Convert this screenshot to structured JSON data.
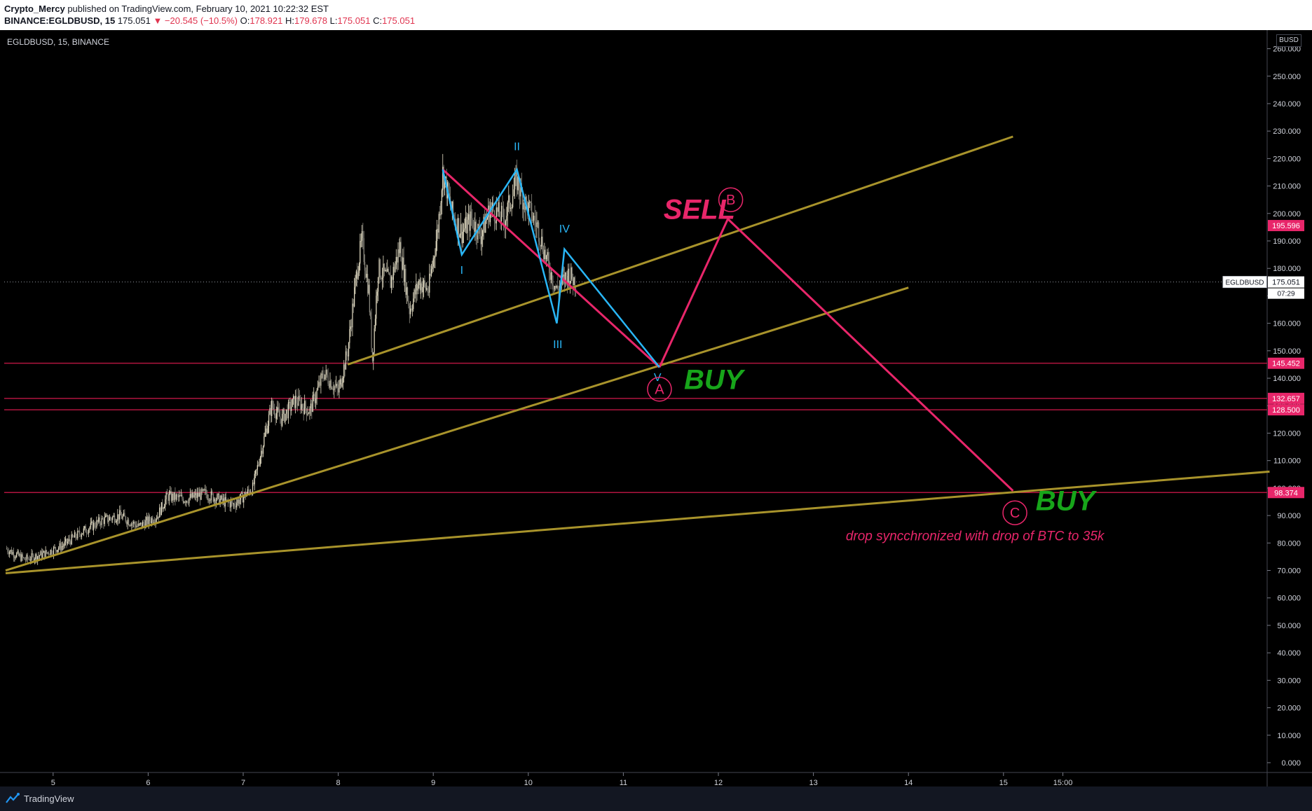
{
  "header": {
    "author": "Crypto_Mercy",
    "published": " published on TradingView.com, February 10, 2021 10:22:32 EST",
    "symbol_full": "BINANCE:EGLDBUSD, 15",
    "last": "175.051",
    "change": "▼ −20.545 (−10.5%)",
    "o_label": "O:",
    "o": "178.921",
    "h_label": "H:",
    "h": "179.678",
    "l_label": "L:",
    "l": "175.051",
    "c_label": "C:",
    "c": "175.051"
  },
  "chart_label": "EGLDBUSD, 15, BINANCE",
  "axis_unit": "BUSD",
  "footer": {
    "brand": "TradingView"
  },
  "colors": {
    "background": "#000000",
    "trendline": "#a8932b",
    "projection": "#e8266a",
    "wave": "#29b6f6",
    "buy": "#17a51a",
    "hline": "#b1153f",
    "price_tag": "#e8266a"
  },
  "chart_data": {
    "type": "candlestick",
    "title": "EGLDBUSD, 15, BINANCE",
    "x_ticks": [
      {
        "label": "5",
        "x": 5
      },
      {
        "label": "6",
        "x": 6
      },
      {
        "label": "7",
        "x": 7
      },
      {
        "label": "8",
        "x": 8
      },
      {
        "label": "9",
        "x": 9
      },
      {
        "label": "10",
        "x": 10
      },
      {
        "label": "11",
        "x": 11
      },
      {
        "label": "12",
        "x": 12
      },
      {
        "label": "13",
        "x": 13
      },
      {
        "label": "14",
        "x": 14
      },
      {
        "label": "15",
        "x": 15
      },
      {
        "label": "15:00",
        "x": 15.625
      }
    ],
    "x_range": [
      4.5,
      17.8
    ],
    "y_range": [
      0,
      265
    ],
    "y_ticks": [
      "0.000",
      "10.000",
      "20.000",
      "30.000",
      "40.000",
      "50.000",
      "60.000",
      "70.000",
      "80.000",
      "90.000",
      "100.000",
      "110.000",
      "120.000",
      "130.000",
      "140.000",
      "150.000",
      "160.000",
      "170.000",
      "180.000",
      "190.000",
      "200.000",
      "210.000",
      "220.000",
      "230.000",
      "240.000",
      "250.000",
      "260.000"
    ],
    "y_tick_values": [
      0,
      10,
      20,
      30,
      40,
      50,
      60,
      70,
      80,
      90,
      100,
      110,
      120,
      130,
      140,
      150,
      160,
      170,
      180,
      190,
      200,
      210,
      220,
      230,
      240,
      250,
      260
    ],
    "price_path": [
      [
        4.5,
        78
      ],
      [
        4.7,
        74
      ],
      [
        4.9,
        76
      ],
      [
        5.1,
        79
      ],
      [
        5.3,
        84
      ],
      [
        5.5,
        88
      ],
      [
        5.7,
        90
      ],
      [
        5.9,
        86
      ],
      [
        6.1,
        90
      ],
      [
        6.2,
        97
      ],
      [
        6.4,
        96
      ],
      [
        6.6,
        98
      ],
      [
        6.8,
        95
      ],
      [
        6.9,
        94
      ],
      [
        7.1,
        100
      ],
      [
        7.2,
        115
      ],
      [
        7.3,
        130
      ],
      [
        7.4,
        125
      ],
      [
        7.55,
        132
      ],
      [
        7.7,
        128
      ],
      [
        7.85,
        142
      ],
      [
        8.0,
        135
      ],
      [
        8.1,
        150
      ],
      [
        8.2,
        180
      ],
      [
        8.25,
        190
      ],
      [
        8.32,
        172
      ],
      [
        8.36,
        147
      ],
      [
        8.42,
        180
      ],
      [
        8.55,
        175
      ],
      [
        8.65,
        188
      ],
      [
        8.75,
        165
      ],
      [
        8.85,
        175
      ],
      [
        8.95,
        172
      ],
      [
        9.05,
        195
      ],
      [
        9.1,
        215
      ],
      [
        9.2,
        200
      ],
      [
        9.3,
        193
      ],
      [
        9.4,
        198
      ],
      [
        9.5,
        192
      ],
      [
        9.6,
        202
      ],
      [
        9.75,
        198
      ],
      [
        9.88,
        212
      ],
      [
        9.95,
        205
      ],
      [
        10.1,
        195
      ],
      [
        10.2,
        182
      ],
      [
        10.3,
        172
      ],
      [
        10.42,
        178
      ],
      [
        10.5,
        175
      ]
    ],
    "hlines": [
      {
        "value": 145.452,
        "label": "145.452"
      },
      {
        "value": 132.657,
        "label": "132.657"
      },
      {
        "value": 128.5,
        "label": "128.500"
      },
      {
        "value": 98.374,
        "label": "98.374"
      }
    ],
    "highlighted_prices": [
      {
        "value": 195.596,
        "label": "195.596"
      }
    ],
    "last_price": {
      "value": 175.051,
      "label": "175.051",
      "symbol": "EGLDBUSD",
      "countdown": "07:29"
    },
    "trendlines": [
      {
        "from": [
          4.5,
          69
        ],
        "to": [
          17.8,
          106
        ]
      },
      {
        "from": [
          4.5,
          70
        ],
        "to": [
          14.0,
          173
        ]
      },
      {
        "from": [
          8.1,
          145
        ],
        "to": [
          15.1,
          228
        ]
      }
    ],
    "projection_lines": [
      {
        "from": [
          9.1,
          216
        ],
        "to": [
          11.38,
          144
        ]
      },
      {
        "from": [
          11.38,
          144
        ],
        "to": [
          12.1,
          198
        ]
      },
      {
        "from": [
          12.1,
          198
        ],
        "to": [
          15.1,
          99
        ]
      }
    ],
    "wave_path": [
      [
        9.1,
        216
      ],
      [
        9.3,
        185
      ],
      [
        9.88,
        216
      ],
      [
        10.3,
        160
      ],
      [
        10.38,
        187
      ],
      [
        11.38,
        144
      ]
    ],
    "wave_labels": [
      {
        "text": "I",
        "x": 9.3,
        "y": 178
      },
      {
        "text": "II",
        "x": 9.88,
        "y": 223
      },
      {
        "text": "III",
        "x": 10.31,
        "y": 151
      },
      {
        "text": "IV",
        "x": 10.38,
        "y": 193
      },
      {
        "text": "V",
        "x": 11.36,
        "y": 139
      }
    ],
    "circle_labels": [
      {
        "text": "A",
        "x": 11.38,
        "y": 136
      },
      {
        "text": "B",
        "x": 12.13,
        "y": 205
      },
      {
        "text": "C",
        "x": 15.12,
        "y": 91
      }
    ],
    "annotations": [
      {
        "text": "SELL",
        "x": 11.8,
        "y": 198,
        "color": "projection"
      },
      {
        "text": "BUY",
        "x": 11.95,
        "y": 136,
        "color": "buy"
      },
      {
        "text": "BUY",
        "x": 15.65,
        "y": 92,
        "color": "buy"
      },
      {
        "text": "drop syncchronized with drop of BTC to 35k",
        "x": 14.7,
        "y": 81,
        "color": "projection"
      }
    ]
  }
}
